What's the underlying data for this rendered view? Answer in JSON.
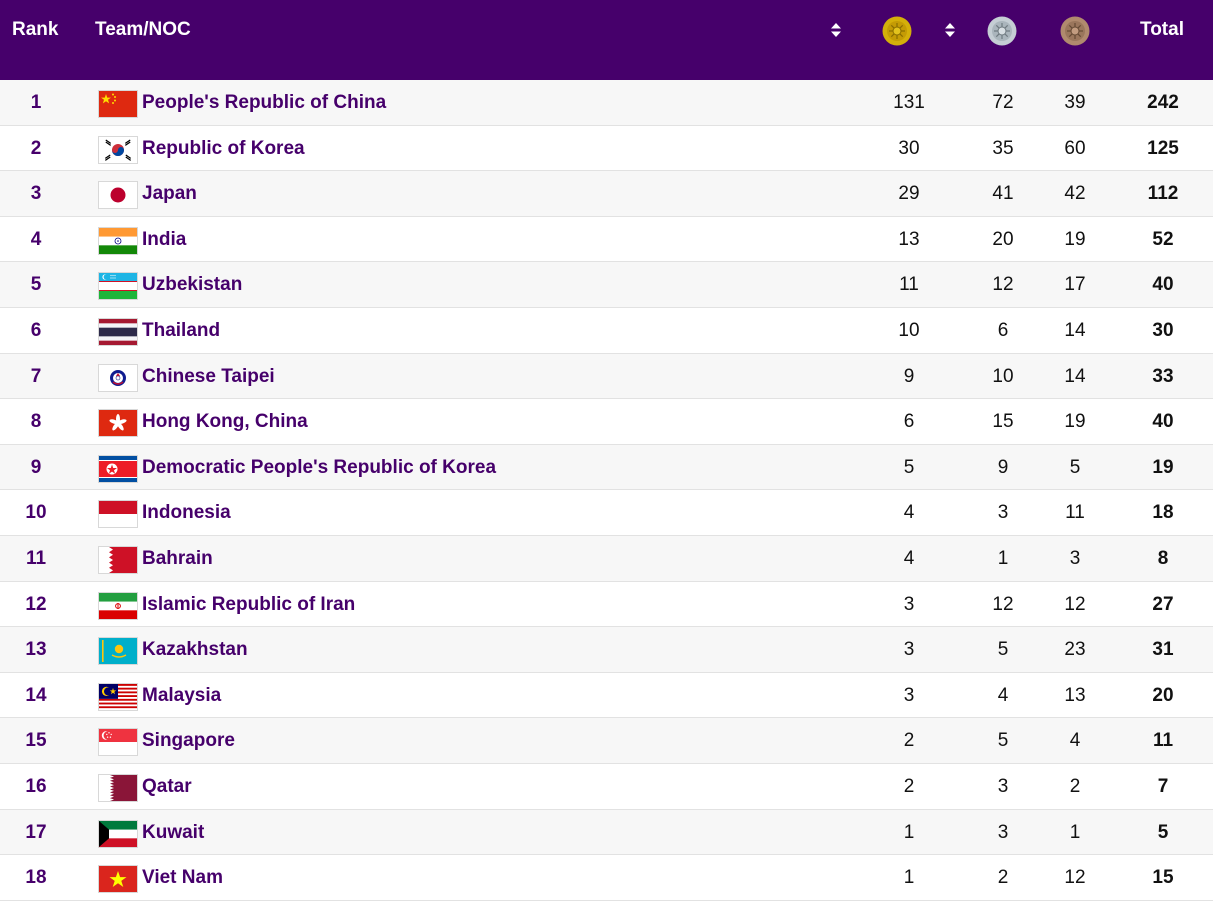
{
  "header": {
    "rank_label": "Rank",
    "team_label": "Team/NOC",
    "total_label": "Total",
    "gold_icon": "gold-medal-icon",
    "silver_icon": "silver-medal-icon",
    "bronze_icon": "bronze-medal-icon",
    "sort_icon": "sort-icon"
  },
  "colors": {
    "header_bg": "#46006b",
    "team_text": "#46006b",
    "gold": "#d4af0a",
    "silver": "#bcc6cc",
    "bronze": "#b08a6e"
  },
  "rows": [
    {
      "rank": "1",
      "team": "People's Republic of China",
      "flag": "CHN",
      "gold": "131",
      "silver": "72",
      "bronze": "39",
      "total": "242"
    },
    {
      "rank": "2",
      "team": "Republic of Korea",
      "flag": "KOR",
      "gold": "30",
      "silver": "35",
      "bronze": "60",
      "total": "125"
    },
    {
      "rank": "3",
      "team": "Japan",
      "flag": "JPN",
      "gold": "29",
      "silver": "41",
      "bronze": "42",
      "total": "112"
    },
    {
      "rank": "4",
      "team": "India",
      "flag": "IND",
      "gold": "13",
      "silver": "20",
      "bronze": "19",
      "total": "52"
    },
    {
      "rank": "5",
      "team": "Uzbekistan",
      "flag": "UZB",
      "gold": "11",
      "silver": "12",
      "bronze": "17",
      "total": "40"
    },
    {
      "rank": "6",
      "team": "Thailand",
      "flag": "THA",
      "gold": "10",
      "silver": "6",
      "bronze": "14",
      "total": "30"
    },
    {
      "rank": "7",
      "team": "Chinese Taipei",
      "flag": "TPE",
      "gold": "9",
      "silver": "10",
      "bronze": "14",
      "total": "33"
    },
    {
      "rank": "8",
      "team": "Hong Kong, China",
      "flag": "HKG",
      "gold": "6",
      "silver": "15",
      "bronze": "19",
      "total": "40"
    },
    {
      "rank": "9",
      "team": "Democratic People's Republic of Korea",
      "flag": "PRK",
      "gold": "5",
      "silver": "9",
      "bronze": "5",
      "total": "19"
    },
    {
      "rank": "10",
      "team": "Indonesia",
      "flag": "INA",
      "gold": "4",
      "silver": "3",
      "bronze": "11",
      "total": "18"
    },
    {
      "rank": "11",
      "team": "Bahrain",
      "flag": "BRN",
      "gold": "4",
      "silver": "1",
      "bronze": "3",
      "total": "8"
    },
    {
      "rank": "12",
      "team": "Islamic Republic of Iran",
      "flag": "IRI",
      "gold": "3",
      "silver": "12",
      "bronze": "12",
      "total": "27"
    },
    {
      "rank": "13",
      "team": "Kazakhstan",
      "flag": "KAZ",
      "gold": "3",
      "silver": "5",
      "bronze": "23",
      "total": "31"
    },
    {
      "rank": "14",
      "team": "Malaysia",
      "flag": "MAS",
      "gold": "3",
      "silver": "4",
      "bronze": "13",
      "total": "20"
    },
    {
      "rank": "15",
      "team": "Singapore",
      "flag": "SGP",
      "gold": "2",
      "silver": "5",
      "bronze": "4",
      "total": "11"
    },
    {
      "rank": "16",
      "team": "Qatar",
      "flag": "QAT",
      "gold": "2",
      "silver": "3",
      "bronze": "2",
      "total": "7"
    },
    {
      "rank": "17",
      "team": "Kuwait",
      "flag": "KUW",
      "gold": "1",
      "silver": "3",
      "bronze": "1",
      "total": "5"
    },
    {
      "rank": "18",
      "team": "Viet Nam",
      "flag": "VIE",
      "gold": "1",
      "silver": "2",
      "bronze": "12",
      "total": "15"
    }
  ]
}
